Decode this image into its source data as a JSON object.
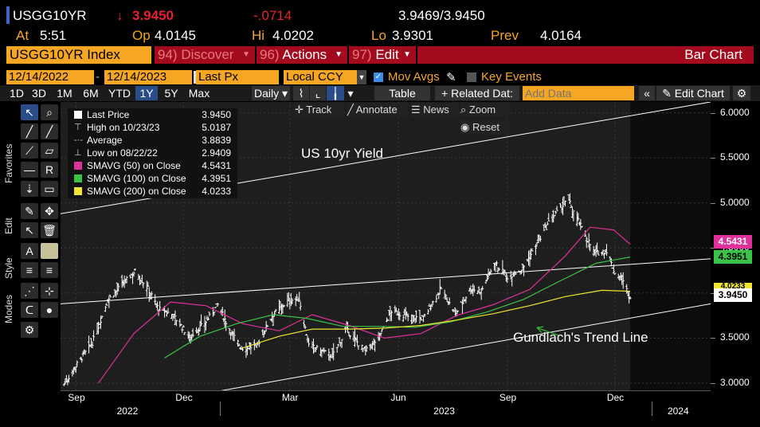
{
  "header": {
    "ticker": "USGG10YR",
    "arrow": "↓",
    "last": "3.9450",
    "change": "-.0714",
    "bid_ask": "3.9469/3.9450",
    "at_label": "At",
    "time": "5:51",
    "op_label": "Op",
    "open": "4.0145",
    "hi_label": "Hi",
    "high": "4.0202",
    "lo_label": "Lo",
    "low": "3.9301",
    "prev_label": "Prev",
    "prev": "4.0164"
  },
  "menubar": {
    "security": "USGG10YR Index",
    "discover_num": "94)",
    "discover": "Discover",
    "actions_num": "96)",
    "actions": "Actions",
    "edit_num": "97)",
    "edit": "Edit",
    "title": "Bar Chart"
  },
  "controls": {
    "start_date": "12/14/2022",
    "end_date": "12/14/2023",
    "field": "Last Px",
    "currency": "Local CCY",
    "mov_avgs": "Mov Avgs",
    "key_events": "Key Events"
  },
  "toolbar": {
    "periods": [
      "1D",
      "3D",
      "1M",
      "6M",
      "YTD",
      "1Y",
      "5Y",
      "Max"
    ],
    "selected_period": "1Y",
    "frequency": "Daily",
    "table": "Table",
    "related": "+ Related Dat:",
    "add_data_placeholder": "Add Data",
    "edit_chart": "Edit Chart",
    "track": "Track",
    "annotate": "Annotate",
    "news": "News",
    "zoom": "Zoom",
    "reset": "Reset"
  },
  "sidebar": {
    "favorites": "Favorites",
    "edit": "Edit",
    "style": "Style",
    "modes": "Modes"
  },
  "legend": [
    {
      "name": "Last Price",
      "value": "3.9450",
      "color": "#ffffff",
      "marker": "swatch"
    },
    {
      "name": "High on 10/23/23",
      "value": "5.0187",
      "color": "#cccccc",
      "marker": "T"
    },
    {
      "name": "Average",
      "value": "3.8839",
      "color": "#cccccc",
      "marker": "dash"
    },
    {
      "name": "Low on 08/22/22",
      "value": "2.9409",
      "color": "#cccccc",
      "marker": "L"
    },
    {
      "name": "SMAVG (50)  on Close",
      "value": "4.5431",
      "color": "#e0309a",
      "marker": "swatch"
    },
    {
      "name": "SMAVG (100)  on Close",
      "value": "4.3951",
      "color": "#39c447",
      "marker": "swatch"
    },
    {
      "name": "SMAVG (200)  on Close",
      "value": "4.0233",
      "color": "#f0e630",
      "marker": "swatch"
    }
  ],
  "tags": {
    "sma50": "4.5431",
    "sma100": "4.3951",
    "sma200": "4.0233",
    "last": "3.9450"
  },
  "annotations": {
    "title": "US 10yr Yield",
    "trend": "Gundlach's Trend Line"
  },
  "chart_data": {
    "type": "bar",
    "title": "US 10yr Yield",
    "ylim": [
      2.92,
      6.12
    ],
    "y_ticks": [
      "3.0000",
      "3.5000",
      "4.0000",
      "4.5000",
      "5.0000",
      "5.5000",
      "6.0000"
    ],
    "x_ticks": [
      "Sep",
      "Dec",
      "Mar",
      "Jun",
      "Sep",
      "Dec"
    ],
    "x_years": [
      "2022",
      "2023",
      "2024"
    ],
    "xlim": [
      "2022-08-19",
      "2024-02-20"
    ],
    "grid": true,
    "colors": {
      "price": "#ffffff",
      "sma50": "#e0309a",
      "sma100": "#39c447",
      "sma200": "#f0e630",
      "channel": "#ffffff",
      "arrow": "#2fbf3a"
    },
    "series": [
      {
        "name": "Last Price",
        "x": [
          "2022-08-22",
          "2022-09-01",
          "2022-09-15",
          "2022-09-28",
          "2022-10-10",
          "2022-10-21",
          "2022-11-01",
          "2022-11-10",
          "2022-11-22",
          "2022-12-06",
          "2022-12-20",
          "2022-12-30",
          "2023-01-10",
          "2023-01-19",
          "2023-02-01",
          "2023-02-14",
          "2023-02-28",
          "2023-03-09",
          "2023-03-17",
          "2023-03-24",
          "2023-04-06",
          "2023-04-18",
          "2023-05-04",
          "2023-05-15",
          "2023-05-26",
          "2023-06-09",
          "2023-06-22",
          "2023-07-07",
          "2023-07-19",
          "2023-08-01",
          "2023-08-10",
          "2023-08-21",
          "2023-09-01",
          "2023-09-14",
          "2023-09-26",
          "2023-10-06",
          "2023-10-19",
          "2023-10-23",
          "2023-11-01",
          "2023-11-14",
          "2023-11-24",
          "2023-12-01",
          "2023-12-07",
          "2023-12-14"
        ],
        "values": [
          2.99,
          3.19,
          3.45,
          3.92,
          4.09,
          4.24,
          4.05,
          3.82,
          3.76,
          3.51,
          3.68,
          3.87,
          3.57,
          3.39,
          3.41,
          3.75,
          3.92,
          3.93,
          3.42,
          3.38,
          3.3,
          3.59,
          3.35,
          3.5,
          3.8,
          3.74,
          3.72,
          4.05,
          3.76,
          4.05,
          4.02,
          4.34,
          4.18,
          4.27,
          4.54,
          4.78,
          4.99,
          5.02,
          4.77,
          4.44,
          4.47,
          4.22,
          4.15,
          3.945
        ]
      },
      {
        "name": "SMAVG (50)  on Close",
        "x": [
          "2022-09-20",
          "2022-10-20",
          "2022-11-20",
          "2022-12-20",
          "2023-01-20",
          "2023-02-20",
          "2023-03-20",
          "2023-04-20",
          "2023-05-20",
          "2023-06-20",
          "2023-07-20",
          "2023-08-20",
          "2023-09-20",
          "2023-10-20",
          "2023-11-10",
          "2023-11-30",
          "2023-12-14"
        ],
        "values": [
          3.0,
          3.55,
          3.9,
          3.86,
          3.66,
          3.58,
          3.76,
          3.64,
          3.5,
          3.55,
          3.75,
          3.87,
          4.04,
          4.41,
          4.73,
          4.7,
          4.54
        ]
      },
      {
        "name": "SMAVG (100)  on Close",
        "x": [
          "2022-11-15",
          "2022-12-15",
          "2023-01-15",
          "2023-02-15",
          "2023-03-15",
          "2023-04-15",
          "2023-05-15",
          "2023-06-15",
          "2023-07-15",
          "2023-08-15",
          "2023-09-15",
          "2023-10-15",
          "2023-11-15",
          "2023-12-14"
        ],
        "values": [
          3.28,
          3.52,
          3.66,
          3.76,
          3.72,
          3.63,
          3.63,
          3.62,
          3.68,
          3.79,
          3.93,
          4.13,
          4.33,
          4.4
        ]
      },
      {
        "name": "SMAVG (200)  on Close",
        "x": [
          "2023-01-20",
          "2023-02-20",
          "2023-03-20",
          "2023-04-20",
          "2023-05-20",
          "2023-06-20",
          "2023-07-20",
          "2023-08-20",
          "2023-09-20",
          "2023-10-20",
          "2023-11-20",
          "2023-12-14"
        ],
        "values": [
          3.39,
          3.52,
          3.6,
          3.6,
          3.61,
          3.64,
          3.7,
          3.77,
          3.86,
          3.96,
          4.03,
          4.02
        ]
      }
    ]
  }
}
